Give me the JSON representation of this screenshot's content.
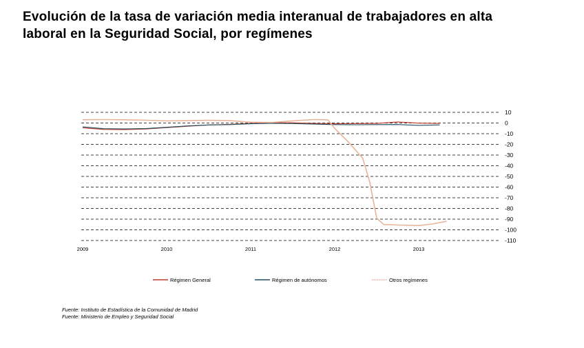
{
  "title": {
    "line1": "Evolución de la tasa de variación media interanual de trabajadores en alta",
    "line2": "laboral en la Seguridad Social, por  regímenes"
  },
  "sources": [
    "Fuente: Instituto de Estadística de la Comunidad de Madrid",
    "Fuente: Ministerio de Empleo y Seguridad Social"
  ],
  "chart_data": {
    "type": "line",
    "title": "Evolución de la tasa de variación media interanual de trabajadores en alta laboral en la Seguridad Social, por  regímenes",
    "xlabel": "",
    "ylabel": "",
    "x_ticks": [
      "2009",
      "2010",
      "2011",
      "2012",
      "2013"
    ],
    "y_ticks": [
      10,
      0,
      -10,
      -20,
      -30,
      -40,
      -50,
      -60,
      -70,
      -80,
      -90,
      -100,
      -110
    ],
    "xlim": [
      "2009-01",
      "2014-01"
    ],
    "ylim": [
      -110,
      10
    ],
    "grid": true,
    "legend_position": "bottom",
    "colors": {
      "Régimen General": "#c0392b",
      "Régimen de autónomos": "#1f4e5f",
      "Otros regímenes": "#e8b49a"
    },
    "series": [
      {
        "name": "Régimen General",
        "x": [
          "2009-01",
          "2009-04",
          "2009-07",
          "2009-10",
          "2010-01",
          "2010-04",
          "2010-07",
          "2010-10",
          "2011-01",
          "2011-04",
          "2011-07",
          "2011-10",
          "2012-01",
          "2012-04",
          "2012-07",
          "2012-10",
          "2013-01",
          "2013-04"
        ],
        "y": [
          -4.5,
          -6,
          -6.2,
          -5.6,
          -4.3,
          -3,
          -1.8,
          -1.2,
          -0.4,
          0.3,
          0.2,
          -0.4,
          -0.7,
          -0.5,
          -0.4,
          1.0,
          -0.1,
          -0.4
        ]
      },
      {
        "name": "Régimen de autónomos",
        "x": [
          "2009-01",
          "2009-04",
          "2009-07",
          "2009-10",
          "2010-01",
          "2010-04",
          "2010-07",
          "2010-10",
          "2011-01",
          "2011-04",
          "2011-07",
          "2011-10",
          "2012-01",
          "2012-04",
          "2012-07",
          "2012-10",
          "2013-01",
          "2013-04"
        ],
        "y": [
          -3.6,
          -5.3,
          -5.5,
          -5.2,
          -4.0,
          -2.7,
          -1.8,
          -1.5,
          -0.7,
          -0.3,
          -0.5,
          -1.0,
          -1.5,
          -1.6,
          -1.5,
          -1.4,
          -2.2,
          -1.8
        ]
      },
      {
        "name": "Otros regímenes",
        "x": [
          "2009-01",
          "2009-04",
          "2009-07",
          "2009-10",
          "2010-01",
          "2010-04",
          "2010-07",
          "2010-10",
          "2011-01",
          "2011-04",
          "2011-07",
          "2011-10",
          "2011-12",
          "2012-01",
          "2012-03",
          "2012-05",
          "2012-06",
          "2012-07",
          "2012-08",
          "2012-10",
          "2013-01",
          "2013-03",
          "2013-05"
        ],
        "y": [
          3.0,
          3.2,
          3.0,
          2.6,
          2.0,
          2.2,
          2.5,
          2.2,
          0.8,
          0.5,
          2.0,
          3.2,
          3.0,
          -5,
          -18,
          -33,
          -55,
          -89,
          -95,
          -95.5,
          -96,
          -94.5,
          -92
        ]
      }
    ]
  }
}
